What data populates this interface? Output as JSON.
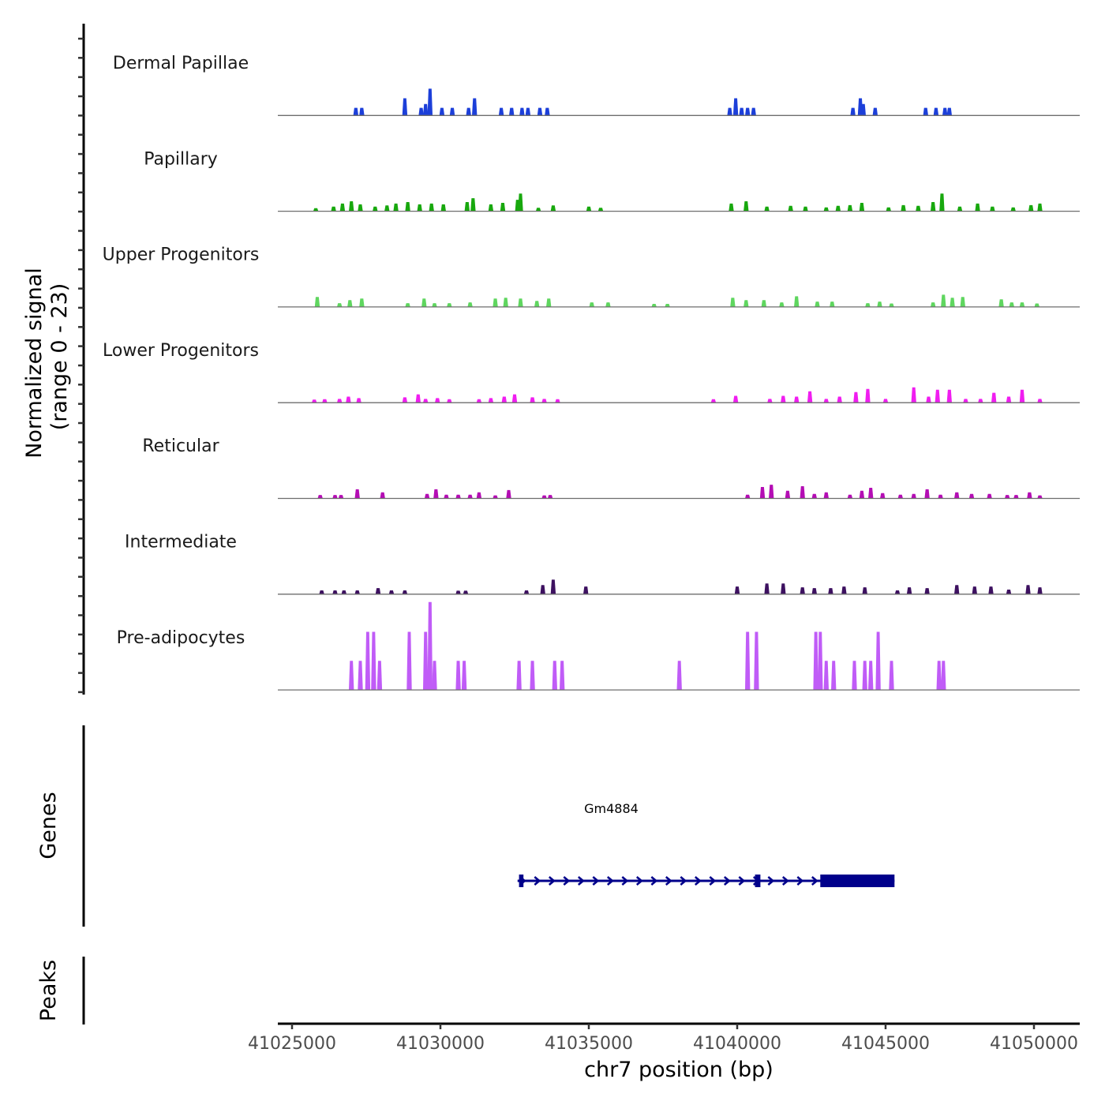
{
  "chart_data": {
    "type": "area",
    "title": "",
    "ylabel_lines": [
      "Normalized signal",
      "(range 0 - 23)"
    ],
    "xlabel": "chr7 position (bp)",
    "xlim": [
      41024500,
      41051500
    ],
    "ylim": [
      0,
      23
    ],
    "x_ticks": [
      41025000,
      41030000,
      41035000,
      41040000,
      41045000,
      41050000
    ],
    "x_tick_labels": [
      "41025000",
      "41030000",
      "41035000",
      "41040000",
      "41045000",
      "41050000"
    ],
    "tracks": [
      {
        "name": "Dermal Papillae",
        "color": "#1c3fd9",
        "peaks": [
          [
            41027150,
            2
          ],
          [
            41027350,
            2
          ],
          [
            41028800,
            4.5
          ],
          [
            41029350,
            2
          ],
          [
            41029500,
            3
          ],
          [
            41029650,
            7
          ],
          [
            41030050,
            2
          ],
          [
            41030400,
            2
          ],
          [
            41030950,
            2
          ],
          [
            41031150,
            4.5
          ],
          [
            41032050,
            2
          ],
          [
            41032400,
            2
          ],
          [
            41032750,
            2
          ],
          [
            41032950,
            2
          ],
          [
            41033350,
            2
          ],
          [
            41033600,
            2
          ],
          [
            41039750,
            2
          ],
          [
            41039950,
            4.5
          ],
          [
            41040150,
            2
          ],
          [
            41040350,
            2
          ],
          [
            41040550,
            2
          ],
          [
            41043900,
            2
          ],
          [
            41044150,
            4.5
          ],
          [
            41044250,
            3
          ],
          [
            41044650,
            2
          ],
          [
            41046350,
            2
          ],
          [
            41046700,
            2
          ],
          [
            41047000,
            2
          ],
          [
            41047150,
            2
          ]
        ]
      },
      {
        "name": "Papillary",
        "color": "#18a80e",
        "peaks": [
          [
            41025800,
            0.8
          ],
          [
            41026400,
            1.2
          ],
          [
            41026700,
            2
          ],
          [
            41027000,
            2.6
          ],
          [
            41027300,
            1.8
          ],
          [
            41027800,
            1.2
          ],
          [
            41028200,
            1.5
          ],
          [
            41028500,
            2
          ],
          [
            41028900,
            2.4
          ],
          [
            41029300,
            1.8
          ],
          [
            41029700,
            2
          ],
          [
            41030100,
            1.8
          ],
          [
            41030900,
            2.4
          ],
          [
            41031100,
            3.4
          ],
          [
            41031700,
            1.8
          ],
          [
            41032100,
            2.2
          ],
          [
            41032600,
            3
          ],
          [
            41032700,
            4.6
          ],
          [
            41033300,
            0.9
          ],
          [
            41033800,
            1.5
          ],
          [
            41035000,
            1.2
          ],
          [
            41035400,
            0.9
          ],
          [
            41039800,
            2
          ],
          [
            41040300,
            2.6
          ],
          [
            41041000,
            1.2
          ],
          [
            41041800,
            1.4
          ],
          [
            41042300,
            1.2
          ],
          [
            41043000,
            1
          ],
          [
            41043400,
            1.4
          ],
          [
            41043800,
            1.6
          ],
          [
            41044200,
            2.2
          ],
          [
            41045100,
            1
          ],
          [
            41045600,
            1.6
          ],
          [
            41046100,
            1.4
          ],
          [
            41046600,
            2.4
          ],
          [
            41046900,
            4.6
          ],
          [
            41047500,
            1.2
          ],
          [
            41048100,
            2
          ],
          [
            41048600,
            1.2
          ],
          [
            41049300,
            1
          ],
          [
            41049900,
            1.6
          ],
          [
            41050200,
            2
          ]
        ]
      },
      {
        "name": "Upper Progenitors",
        "color": "#5fd65f",
        "peaks": [
          [
            41025850,
            2.6
          ],
          [
            41026600,
            1
          ],
          [
            41026950,
            1.8
          ],
          [
            41027350,
            2.2
          ],
          [
            41028900,
            1
          ],
          [
            41029450,
            2.2
          ],
          [
            41029800,
            1
          ],
          [
            41030300,
            1
          ],
          [
            41031000,
            1.2
          ],
          [
            41031850,
            2.2
          ],
          [
            41032200,
            2.4
          ],
          [
            41032700,
            2.2
          ],
          [
            41033250,
            1.6
          ],
          [
            41033650,
            2.2
          ],
          [
            41035100,
            1.2
          ],
          [
            41035650,
            1.2
          ],
          [
            41037200,
            0.8
          ],
          [
            41037650,
            0.8
          ],
          [
            41039850,
            2.4
          ],
          [
            41040300,
            1.8
          ],
          [
            41040900,
            1.8
          ],
          [
            41041500,
            1.2
          ],
          [
            41042000,
            2.8
          ],
          [
            41042700,
            1.4
          ],
          [
            41043200,
            1.4
          ],
          [
            41044400,
            1
          ],
          [
            41044800,
            1.4
          ],
          [
            41045200,
            0.9
          ],
          [
            41046600,
            1.2
          ],
          [
            41046950,
            3.2
          ],
          [
            41047250,
            2.4
          ],
          [
            41047600,
            2.6
          ],
          [
            41048900,
            2
          ],
          [
            41049250,
            1.2
          ],
          [
            41049600,
            1.2
          ],
          [
            41050100,
            0.9
          ]
        ]
      },
      {
        "name": "Lower Progenitors",
        "color": "#f01df0",
        "peaks": [
          [
            41025750,
            0.8
          ],
          [
            41026100,
            0.9
          ],
          [
            41026600,
            1
          ],
          [
            41026900,
            1.6
          ],
          [
            41027250,
            1.2
          ],
          [
            41028800,
            1.4
          ],
          [
            41029250,
            2.2
          ],
          [
            41029500,
            1
          ],
          [
            41029900,
            1.2
          ],
          [
            41030300,
            0.9
          ],
          [
            41031300,
            0.9
          ],
          [
            41031700,
            1.2
          ],
          [
            41032150,
            1.6
          ],
          [
            41032500,
            2.2
          ],
          [
            41033100,
            1.4
          ],
          [
            41033500,
            1
          ],
          [
            41033950,
            0.9
          ],
          [
            41039200,
            0.9
          ],
          [
            41039950,
            1.8
          ],
          [
            41041100,
            1
          ],
          [
            41041550,
            1.8
          ],
          [
            41042000,
            1.6
          ],
          [
            41042450,
            3
          ],
          [
            41043000,
            1
          ],
          [
            41043450,
            1.6
          ],
          [
            41044000,
            2.8
          ],
          [
            41044400,
            3.6
          ],
          [
            41045000,
            1
          ],
          [
            41045950,
            4
          ],
          [
            41046450,
            1.6
          ],
          [
            41046750,
            3.4
          ],
          [
            41047150,
            3.4
          ],
          [
            41047700,
            1
          ],
          [
            41048200,
            1
          ],
          [
            41048650,
            2.6
          ],
          [
            41049150,
            1.6
          ],
          [
            41049600,
            3.4
          ],
          [
            41050200,
            1
          ]
        ]
      },
      {
        "name": "Reticular",
        "color": "#b40db4",
        "peaks": [
          [
            41025950,
            0.9
          ],
          [
            41026450,
            0.9
          ],
          [
            41026650,
            0.9
          ],
          [
            41027200,
            2.4
          ],
          [
            41028050,
            1.6
          ],
          [
            41029550,
            1.2
          ],
          [
            41029850,
            2.4
          ],
          [
            41030200,
            1
          ],
          [
            41030600,
            1
          ],
          [
            41031000,
            1
          ],
          [
            41031300,
            1.6
          ],
          [
            41031850,
            0.8
          ],
          [
            41032300,
            2.2
          ],
          [
            41033500,
            0.8
          ],
          [
            41033700,
            0.9
          ],
          [
            41040350,
            1
          ],
          [
            41040850,
            3
          ],
          [
            41041150,
            3.6
          ],
          [
            41041700,
            2
          ],
          [
            41042200,
            3.2
          ],
          [
            41042600,
            1.2
          ],
          [
            41043000,
            1.6
          ],
          [
            41043800,
            1
          ],
          [
            41044200,
            2
          ],
          [
            41044500,
            2.8
          ],
          [
            41044900,
            1.4
          ],
          [
            41045500,
            1
          ],
          [
            41045950,
            1.2
          ],
          [
            41046400,
            2.4
          ],
          [
            41046850,
            1
          ],
          [
            41047400,
            1.6
          ],
          [
            41047900,
            1.2
          ],
          [
            41048500,
            1.2
          ],
          [
            41049100,
            0.9
          ],
          [
            41049400,
            0.9
          ],
          [
            41049850,
            1.6
          ],
          [
            41050200,
            0.8
          ]
        ]
      },
      {
        "name": "Intermediate",
        "color": "#3d1160",
        "peaks": [
          [
            41026000,
            1
          ],
          [
            41026450,
            1
          ],
          [
            41026750,
            1
          ],
          [
            41027200,
            1
          ],
          [
            41027900,
            1.6
          ],
          [
            41028350,
            1
          ],
          [
            41028800,
            1
          ],
          [
            41030600,
            0.9
          ],
          [
            41030850,
            0.9
          ],
          [
            41032900,
            1
          ],
          [
            41033450,
            2.4
          ],
          [
            41033800,
            3.8
          ],
          [
            41034900,
            2
          ],
          [
            41040000,
            2
          ],
          [
            41041000,
            2.8
          ],
          [
            41041550,
            2.8
          ],
          [
            41042200,
            1.8
          ],
          [
            41042600,
            1.6
          ],
          [
            41043150,
            1.6
          ],
          [
            41043600,
            2
          ],
          [
            41044300,
            1.8
          ],
          [
            41045400,
            1
          ],
          [
            41045800,
            1.8
          ],
          [
            41046400,
            1.6
          ],
          [
            41047400,
            2.4
          ],
          [
            41048000,
            2
          ],
          [
            41048550,
            2
          ],
          [
            41049150,
            1.2
          ],
          [
            41049800,
            2.4
          ],
          [
            41050200,
            1.8
          ]
        ]
      },
      {
        "name": "Pre-adipocytes",
        "color": "#c05cf7",
        "peaks": [
          [
            41027000,
            7.6
          ],
          [
            41027300,
            7.6
          ],
          [
            41027550,
            15.2
          ],
          [
            41027750,
            15.2
          ],
          [
            41027950,
            7.6
          ],
          [
            41028950,
            15.2
          ],
          [
            41029500,
            15.2
          ],
          [
            41029650,
            23
          ],
          [
            41029800,
            7.6
          ],
          [
            41030600,
            7.6
          ],
          [
            41030800,
            7.6
          ],
          [
            41032650,
            7.6
          ],
          [
            41033100,
            7.6
          ],
          [
            41033850,
            7.6
          ],
          [
            41034100,
            7.6
          ],
          [
            41038050,
            7.6
          ],
          [
            41040350,
            15.2
          ],
          [
            41040650,
            15.2
          ],
          [
            41042650,
            15.2
          ],
          [
            41042800,
            15.2
          ],
          [
            41043000,
            7.6
          ],
          [
            41043250,
            7.6
          ],
          [
            41043950,
            7.6
          ],
          [
            41044300,
            7.6
          ],
          [
            41044500,
            7.6
          ],
          [
            41044750,
            15.2
          ],
          [
            41045200,
            7.6
          ],
          [
            41046800,
            7.6
          ],
          [
            41046950,
            7.6
          ]
        ]
      }
    ],
    "genes": [
      {
        "name": "Gm4884",
        "strand": "+",
        "start": 41032600,
        "end": 41045300,
        "exons": [
          [
            41032650,
            41032800
          ],
          [
            41040600,
            41040780
          ],
          [
            41042800,
            41045300
          ]
        ]
      }
    ],
    "annotation_tracks": [
      "Genes",
      "Peaks"
    ],
    "grid": false,
    "legend": "none"
  }
}
